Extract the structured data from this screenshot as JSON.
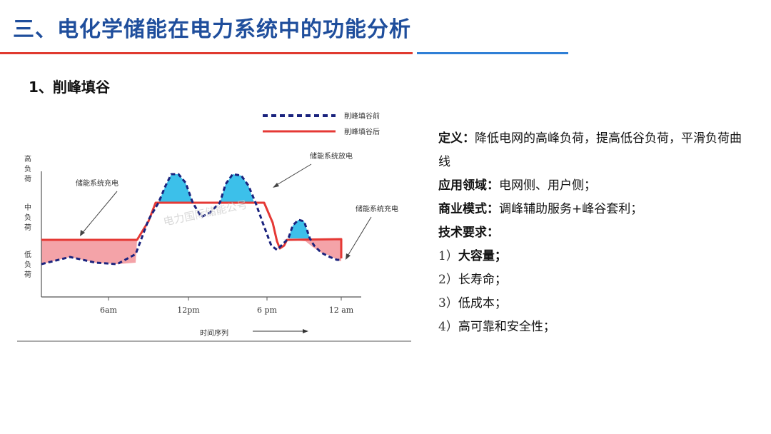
{
  "header": {
    "title": "三、电化学储能在电力系统中的功能分析"
  },
  "section": {
    "title": "1、削峰填谷"
  },
  "chart": {
    "legend": {
      "before": "削峰填谷前",
      "after": "削峰填谷后"
    },
    "ylabels": {
      "high": "高负荷",
      "mid": "中负荷",
      "low": "低负荷"
    },
    "annotations": {
      "charge_left": "储能系统充电",
      "discharge": "储能系统放电",
      "charge_right": "储能系统充电"
    },
    "xticks": [
      "6am",
      "12pm",
      "6 pm",
      "12 am"
    ],
    "xlabel": "时间序列",
    "watermark": "电力国际储能公号",
    "colors": {
      "before": "#1a237e",
      "after": "#e53935",
      "charge_fill": "#f4a3a8",
      "discharge_fill": "#3cc0ea"
    }
  },
  "content": {
    "definition_label": "定义：",
    "definition_text": "降低电网的高峰负荷，提高低谷负荷，平滑负荷曲线",
    "application_label": "应用领域：",
    "application_text": "电网侧、用户侧；",
    "business_label": "商业模式：",
    "business_text": "调峰辅助服务+峰谷套利；",
    "tech_label": "技术要求：",
    "tech_items": [
      {
        "num": "1）",
        "text": "大容量；"
      },
      {
        "num": "2）",
        "text": "长寿命；"
      },
      {
        "num": "3）",
        "text": "低成本；"
      },
      {
        "num": "4）",
        "text": "高可靠和安全性；"
      }
    ]
  }
}
